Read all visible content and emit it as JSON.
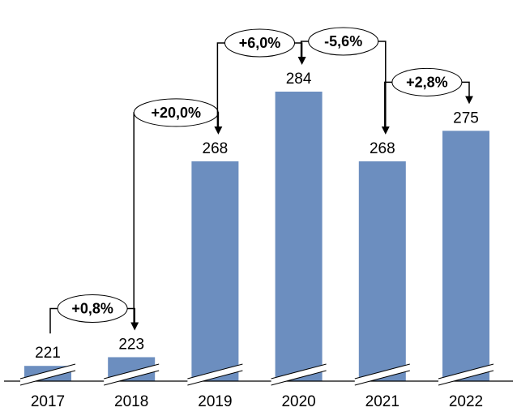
{
  "chart_data": {
    "type": "bar",
    "categories": [
      "2017",
      "2018",
      "2019",
      "2020",
      "2021",
      "2022"
    ],
    "values": [
      221,
      223,
      268,
      284,
      268,
      275
    ],
    "value_labels": [
      "221",
      "223",
      "268",
      "284",
      "268",
      "275"
    ],
    "changes": [
      {
        "from": "2017",
        "to": "2018",
        "label": "+0,8%"
      },
      {
        "from": "2018",
        "to": "2019",
        "label": "+20,0%"
      },
      {
        "from": "2019",
        "to": "2020",
        "label": "+6,0%"
      },
      {
        "from": "2020",
        "to": "2021",
        "label": "-5,6%"
      },
      {
        "from": "2021",
        "to": "2022",
        "label": "+2,8%"
      }
    ],
    "axis_break": true,
    "bar_color": "#6c8ebf",
    "grid": false,
    "legend": "none"
  }
}
